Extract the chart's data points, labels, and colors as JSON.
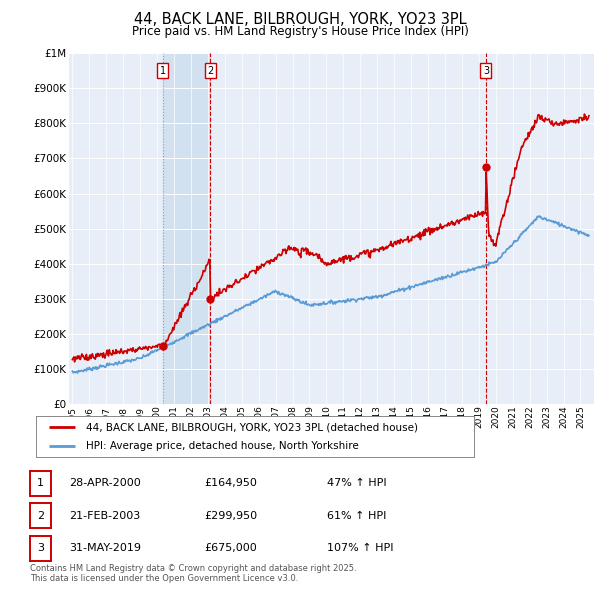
{
  "title": "44, BACK LANE, BILBROUGH, YORK, YO23 3PL",
  "subtitle": "Price paid vs. HM Land Registry's House Price Index (HPI)",
  "ylabel_ticks": [
    "£0",
    "£100K",
    "£200K",
    "£300K",
    "£400K",
    "£500K",
    "£600K",
    "£700K",
    "£800K",
    "£900K",
    "£1M"
  ],
  "ytick_values": [
    0,
    100000,
    200000,
    300000,
    400000,
    500000,
    600000,
    700000,
    800000,
    900000,
    1000000
  ],
  "ylim": [
    0,
    1000000
  ],
  "xlim_start": 1994.8,
  "xlim_end": 2025.8,
  "sale_dates": [
    2000.33,
    2003.13,
    2019.42
  ],
  "sale_prices": [
    164950,
    299950,
    675000
  ],
  "sale_labels": [
    "1",
    "2",
    "3"
  ],
  "vline_dates": [
    2000.33,
    2003.13,
    2019.42
  ],
  "shaded_region": [
    2000.33,
    2003.13
  ],
  "legend_line1": "44, BACK LANE, BILBROUGH, YORK, YO23 3PL (detached house)",
  "legend_line2": "HPI: Average price, detached house, North Yorkshire",
  "table_rows": [
    [
      "1",
      "28-APR-2000",
      "£164,950",
      "47% ↑ HPI"
    ],
    [
      "2",
      "21-FEB-2003",
      "£299,950",
      "61% ↑ HPI"
    ],
    [
      "3",
      "31-MAY-2019",
      "£675,000",
      "107% ↑ HPI"
    ]
  ],
  "footer": "Contains HM Land Registry data © Crown copyright and database right 2025.\nThis data is licensed under the Open Government Licence v3.0.",
  "red_color": "#cc0000",
  "blue_color": "#5b9bd5",
  "shade_color": "#d0e0f0",
  "bg_plot": "#e8eef8",
  "grid_color": "#ffffff",
  "vline_color": "#cc0000",
  "vline1_color": "#aaaacc"
}
